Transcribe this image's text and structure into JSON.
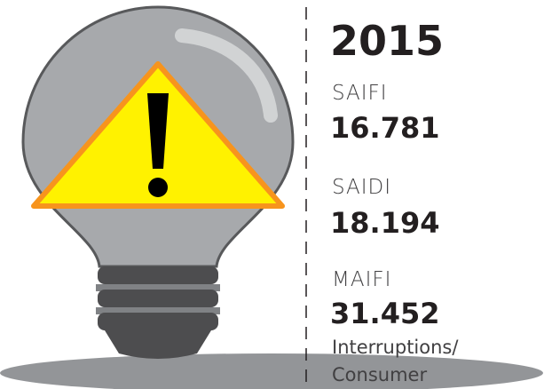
{
  "year": "2015",
  "metrics": [
    {
      "label": "SAIFI",
      "value": "16.781"
    },
    {
      "label": "SAIDI",
      "value": "18.194"
    },
    {
      "label": "MAIFI",
      "value": "31.452"
    }
  ],
  "unit": [
    "Interruptions/",
    "Consumer"
  ]
}
